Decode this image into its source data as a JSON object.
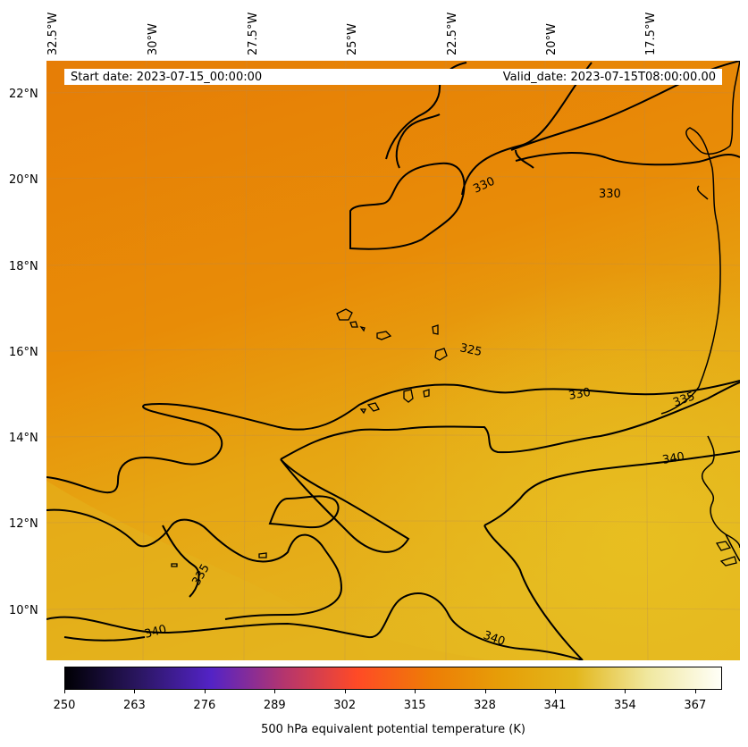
{
  "header": {
    "start_date": "Start date: 2023-07-15_00:00:00",
    "valid_date": "Valid_date: 2023-07-15T08:00:00.00"
  },
  "axes": {
    "longitude_labels": [
      "32.5°W",
      "30°W",
      "27.5°W",
      "25°W",
      "22.5°W",
      "20°W",
      "17.5°W"
    ],
    "latitude_labels": [
      "22°N",
      "20°N",
      "18°N",
      "16°N",
      "14°N",
      "12°N",
      "10°N"
    ]
  },
  "contours": {
    "labels": [
      "330",
      "330",
      "325",
      "330",
      "335",
      "340",
      "335",
      "340",
      "340"
    ]
  },
  "colorbar": {
    "label": "500 hPa equivalent potential temperature (K)",
    "ticks": [
      "250",
      "263",
      "276",
      "289",
      "302",
      "315",
      "328",
      "341",
      "354",
      "367"
    ],
    "range": [
      250,
      372
    ],
    "colors": [
      "#000004",
      "#2a1660",
      "#5323c6",
      "#b4356e",
      "#ff4a26",
      "#ee7c06",
      "#e69f08",
      "#e3b71c",
      "#f0e8a0",
      "#fffff8"
    ]
  }
}
